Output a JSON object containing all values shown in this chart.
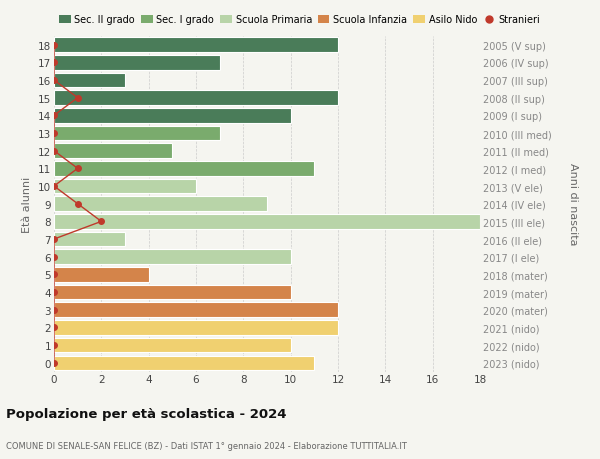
{
  "ages": [
    18,
    17,
    16,
    15,
    14,
    13,
    12,
    11,
    10,
    9,
    8,
    7,
    6,
    5,
    4,
    3,
    2,
    1,
    0
  ],
  "right_labels": [
    "2005 (V sup)",
    "2006 (IV sup)",
    "2007 (III sup)",
    "2008 (II sup)",
    "2009 (I sup)",
    "2010 (III med)",
    "2011 (II med)",
    "2012 (I med)",
    "2013 (V ele)",
    "2014 (IV ele)",
    "2015 (III ele)",
    "2016 (II ele)",
    "2017 (I ele)",
    "2018 (mater)",
    "2019 (mater)",
    "2020 (mater)",
    "2021 (nido)",
    "2022 (nido)",
    "2023 (nido)"
  ],
  "bar_values": [
    12,
    7,
    3,
    12,
    10,
    7,
    5,
    11,
    6,
    9,
    18,
    3,
    10,
    4,
    10,
    12,
    12,
    10,
    11
  ],
  "bar_colors": [
    "#4a7c59",
    "#4a7c59",
    "#4a7c59",
    "#4a7c59",
    "#4a7c59",
    "#7aab6d",
    "#7aab6d",
    "#7aab6d",
    "#b8d4a8",
    "#b8d4a8",
    "#b8d4a8",
    "#b8d4a8",
    "#b8d4a8",
    "#d4844a",
    "#d4844a",
    "#d4844a",
    "#f0d070",
    "#f0d070",
    "#f0d070"
  ],
  "stranieri_x": [
    0,
    0,
    0,
    1,
    0,
    0,
    0,
    1,
    0,
    1,
    2,
    0,
    0,
    0,
    0,
    0,
    0,
    0,
    0
  ],
  "legend_labels": [
    "Sec. II grado",
    "Sec. I grado",
    "Scuola Primaria",
    "Scuola Infanzia",
    "Asilo Nido",
    "Stranieri"
  ],
  "legend_colors": [
    "#4a7c59",
    "#7aab6d",
    "#b8d4a8",
    "#d4844a",
    "#f0d070",
    "#c0392b"
  ],
  "title": "Popolazione per età scolastica - 2024",
  "subtitle": "COMUNE DI SENALE-SAN FELICE (BZ) - Dati ISTAT 1° gennaio 2024 - Elaborazione TUTTITALIA.IT",
  "ylabel_left": "Età alunni",
  "ylabel_right": "Anni di nascita",
  "xlim": [
    0,
    18
  ],
  "xticks": [
    0,
    2,
    4,
    6,
    8,
    10,
    12,
    14,
    16,
    18
  ],
  "bg_color": "#f5f5f0",
  "stranieri_color": "#c0392b",
  "grid_color": "#cccccc"
}
